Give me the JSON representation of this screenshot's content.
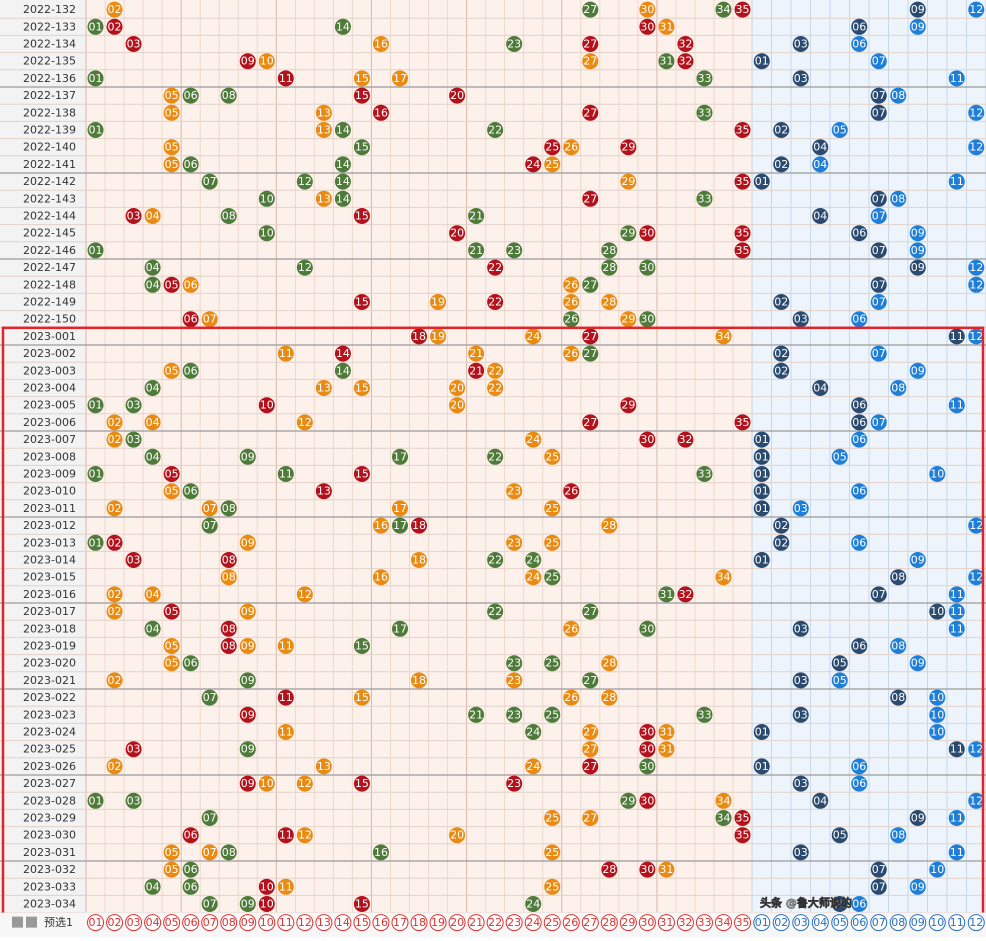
{
  "rows": [
    {
      "issue": "2022-132",
      "front": [
        "02",
        "27",
        "30",
        "34",
        "35"
      ],
      "back": [
        "09",
        "12"
      ]
    },
    {
      "issue": "2022-133",
      "front": [
        "01",
        "02",
        "14",
        "30",
        "31"
      ],
      "back": [
        "06",
        "09"
      ]
    },
    {
      "issue": "2022-134",
      "front": [
        "03",
        "16",
        "23",
        "27",
        "32"
      ],
      "back": [
        "03",
        "06"
      ]
    },
    {
      "issue": "2022-135",
      "front": [
        "09",
        "10",
        "27",
        "31",
        "32"
      ],
      "back": [
        "01",
        "07"
      ]
    },
    {
      "issue": "2022-136",
      "front": [
        "01",
        "11",
        "15",
        "17",
        "33"
      ],
      "back": [
        "03",
        "11"
      ]
    },
    {
      "issue": "2022-137",
      "front": [
        "05",
        "06",
        "08",
        "15",
        "20"
      ],
      "back": [
        "07",
        "08"
      ]
    },
    {
      "issue": "2022-138",
      "front": [
        "05",
        "13",
        "16",
        "27",
        "33"
      ],
      "back": [
        "07",
        "12"
      ]
    },
    {
      "issue": "2022-139",
      "front": [
        "01",
        "13",
        "14",
        "22",
        "35"
      ],
      "back": [
        "02",
        "05"
      ]
    },
    {
      "issue": "2022-140",
      "front": [
        "05",
        "15",
        "25",
        "26",
        "29"
      ],
      "back": [
        "04",
        "12"
      ]
    },
    {
      "issue": "2022-141",
      "front": [
        "05",
        "06",
        "14",
        "24",
        "25"
      ],
      "back": [
        "02",
        "04"
      ]
    },
    {
      "issue": "2022-142",
      "front": [
        "07",
        "12",
        "14",
        "29",
        "35"
      ],
      "back": [
        "01",
        "11"
      ]
    },
    {
      "issue": "2022-143",
      "front": [
        "10",
        "13",
        "14",
        "27",
        "33"
      ],
      "back": [
        "07",
        "08"
      ]
    },
    {
      "issue": "2022-144",
      "front": [
        "03",
        "04",
        "08",
        "15",
        "21"
      ],
      "back": [
        "04",
        "07"
      ]
    },
    {
      "issue": "2022-145",
      "front": [
        "10",
        "20",
        "29",
        "30",
        "35"
      ],
      "back": [
        "06",
        "09"
      ]
    },
    {
      "issue": "2022-146",
      "front": [
        "01",
        "21",
        "23",
        "28",
        "35"
      ],
      "back": [
        "07",
        "09"
      ]
    },
    {
      "issue": "2022-147",
      "front": [
        "04",
        "12",
        "22",
        "28",
        "30"
      ],
      "back": [
        "09",
        "12"
      ]
    },
    {
      "issue": "2022-148",
      "front": [
        "04",
        "05",
        "06",
        "26",
        "27"
      ],
      "back": [
        "07",
        "12"
      ]
    },
    {
      "issue": "2022-149",
      "front": [
        "15",
        "19",
        "22",
        "26",
        "28"
      ],
      "back": [
        "02",
        "07"
      ]
    },
    {
      "issue": "2022-150",
      "front": [
        "06",
        "07",
        "26",
        "29",
        "30"
      ],
      "back": [
        "03",
        "06"
      ]
    },
    {
      "issue": "2023-001",
      "front": [
        "18",
        "19",
        "24",
        "27",
        "34"
      ],
      "back": [
        "11",
        "12"
      ]
    },
    {
      "issue": "2023-002",
      "front": [
        "11",
        "14",
        "21",
        "26",
        "27"
      ],
      "back": [
        "02",
        "07"
      ]
    },
    {
      "issue": "2023-003",
      "front": [
        "05",
        "06",
        "14",
        "21",
        "22"
      ],
      "back": [
        "02",
        "09"
      ]
    },
    {
      "issue": "2023-004",
      "front": [
        "04",
        "13",
        "15",
        "20",
        "22"
      ],
      "back": [
        "04",
        "08"
      ]
    },
    {
      "issue": "2023-005",
      "front": [
        "01",
        "03",
        "10",
        "20",
        "29"
      ],
      "back": [
        "06",
        "11"
      ]
    },
    {
      "issue": "2023-006",
      "front": [
        "02",
        "04",
        "12",
        "27",
        "35"
      ],
      "back": [
        "06",
        "07"
      ]
    },
    {
      "issue": "2023-007",
      "front": [
        "02",
        "03",
        "24",
        "30",
        "32"
      ],
      "back": [
        "01",
        "06"
      ]
    },
    {
      "issue": "2023-008",
      "front": [
        "04",
        "09",
        "17",
        "22",
        "25"
      ],
      "back": [
        "01",
        "05"
      ]
    },
    {
      "issue": "2023-009",
      "front": [
        "01",
        "05",
        "11",
        "15",
        "33"
      ],
      "back": [
        "01",
        "10"
      ]
    },
    {
      "issue": "2023-010",
      "front": [
        "05",
        "06",
        "13",
        "23",
        "26"
      ],
      "back": [
        "01",
        "06"
      ]
    },
    {
      "issue": "2023-011",
      "front": [
        "02",
        "07",
        "08",
        "17",
        "25"
      ],
      "back": [
        "01",
        "03"
      ]
    },
    {
      "issue": "2023-012",
      "front": [
        "07",
        "16",
        "17",
        "18",
        "28"
      ],
      "back": [
        "02",
        "12"
      ]
    },
    {
      "issue": "2023-013",
      "front": [
        "01",
        "02",
        "09",
        "23",
        "25"
      ],
      "back": [
        "02",
        "06"
      ]
    },
    {
      "issue": "2023-014",
      "front": [
        "03",
        "08",
        "18",
        "22",
        "24"
      ],
      "back": [
        "01",
        "09"
      ]
    },
    {
      "issue": "2023-015",
      "front": [
        "08",
        "16",
        "24",
        "25",
        "34"
      ],
      "back": [
        "08",
        "12"
      ]
    },
    {
      "issue": "2023-016",
      "front": [
        "02",
        "04",
        "12",
        "31",
        "32"
      ],
      "back": [
        "07",
        "11"
      ]
    },
    {
      "issue": "2023-017",
      "front": [
        "02",
        "05",
        "09",
        "22",
        "27"
      ],
      "back": [
        "10",
        "11"
      ]
    },
    {
      "issue": "2023-018",
      "front": [
        "04",
        "08",
        "17",
        "26",
        "30"
      ],
      "back": [
        "03",
        "11"
      ]
    },
    {
      "issue": "2023-019",
      "front": [
        "05",
        "08",
        "09",
        "11",
        "15"
      ],
      "back": [
        "06",
        "08"
      ]
    },
    {
      "issue": "2023-020",
      "front": [
        "05",
        "06",
        "23",
        "25",
        "28"
      ],
      "back": [
        "05",
        "09"
      ]
    },
    {
      "issue": "2023-021",
      "front": [
        "02",
        "09",
        "18",
        "23",
        "27"
      ],
      "back": [
        "03",
        "05"
      ]
    },
    {
      "issue": "2023-022",
      "front": [
        "07",
        "11",
        "15",
        "26",
        "28"
      ],
      "back": [
        "08",
        "10"
      ]
    },
    {
      "issue": "2023-023",
      "front": [
        "09",
        "21",
        "23",
        "25",
        "33"
      ],
      "back": [
        "03",
        "10"
      ]
    },
    {
      "issue": "2023-024",
      "front": [
        "11",
        "24",
        "27",
        "30",
        "31"
      ],
      "back": [
        "01",
        "10"
      ]
    },
    {
      "issue": "2023-025",
      "front": [
        "03",
        "09",
        "27",
        "30",
        "31"
      ],
      "back": [
        "11",
        "12"
      ]
    },
    {
      "issue": "2023-026",
      "front": [
        "02",
        "13",
        "24",
        "27",
        "30"
      ],
      "back": [
        "01",
        "06"
      ]
    },
    {
      "issue": "2023-027",
      "front": [
        "09",
        "10",
        "12",
        "15",
        "23"
      ],
      "back": [
        "03",
        "06"
      ]
    },
    {
      "issue": "2023-028",
      "front": [
        "01",
        "03",
        "29",
        "30",
        "34"
      ],
      "back": [
        "04",
        "12"
      ]
    },
    {
      "issue": "2023-029",
      "front": [
        "07",
        "25",
        "27",
        "34",
        "35"
      ],
      "back": [
        "09",
        "11"
      ]
    },
    {
      "issue": "2023-030",
      "front": [
        "06",
        "11",
        "12",
        "20",
        "35"
      ],
      "back": [
        "05",
        "08"
      ]
    },
    {
      "issue": "2023-031",
      "front": [
        "05",
        "07",
        "08",
        "16",
        "25"
      ],
      "back": [
        "03",
        "11"
      ]
    },
    {
      "issue": "2023-032",
      "front": [
        "05",
        "06",
        "28",
        "30",
        "31"
      ],
      "back": [
        "07",
        "10"
      ]
    },
    {
      "issue": "2023-033",
      "front": [
        "04",
        "06",
        "10",
        "11",
        "25"
      ],
      "back": [
        "07",
        "09"
      ]
    },
    {
      "issue": "2023-034",
      "front": [
        "07",
        "09",
        "10",
        "15",
        "24"
      ],
      "back": [
        "05",
        "06"
      ]
    }
  ],
  "footer": {
    "label": "预选1",
    "front": [
      "01",
      "02",
      "03",
      "04",
      "05",
      "06",
      "07",
      "08",
      "09",
      "10",
      "11",
      "12",
      "13",
      "14",
      "15",
      "16",
      "17",
      "18",
      "19",
      "20",
      "21",
      "22",
      "23",
      "24",
      "25",
      "26",
      "27",
      "28",
      "29",
      "30",
      "31",
      "32",
      "33",
      "34",
      "35"
    ],
    "back": [
      "01",
      "02",
      "03",
      "04",
      "05",
      "06",
      "07",
      "08",
      "09",
      "10",
      "11",
      "12"
    ]
  },
  "watermark": "头条 @鲁大师说的"
}
